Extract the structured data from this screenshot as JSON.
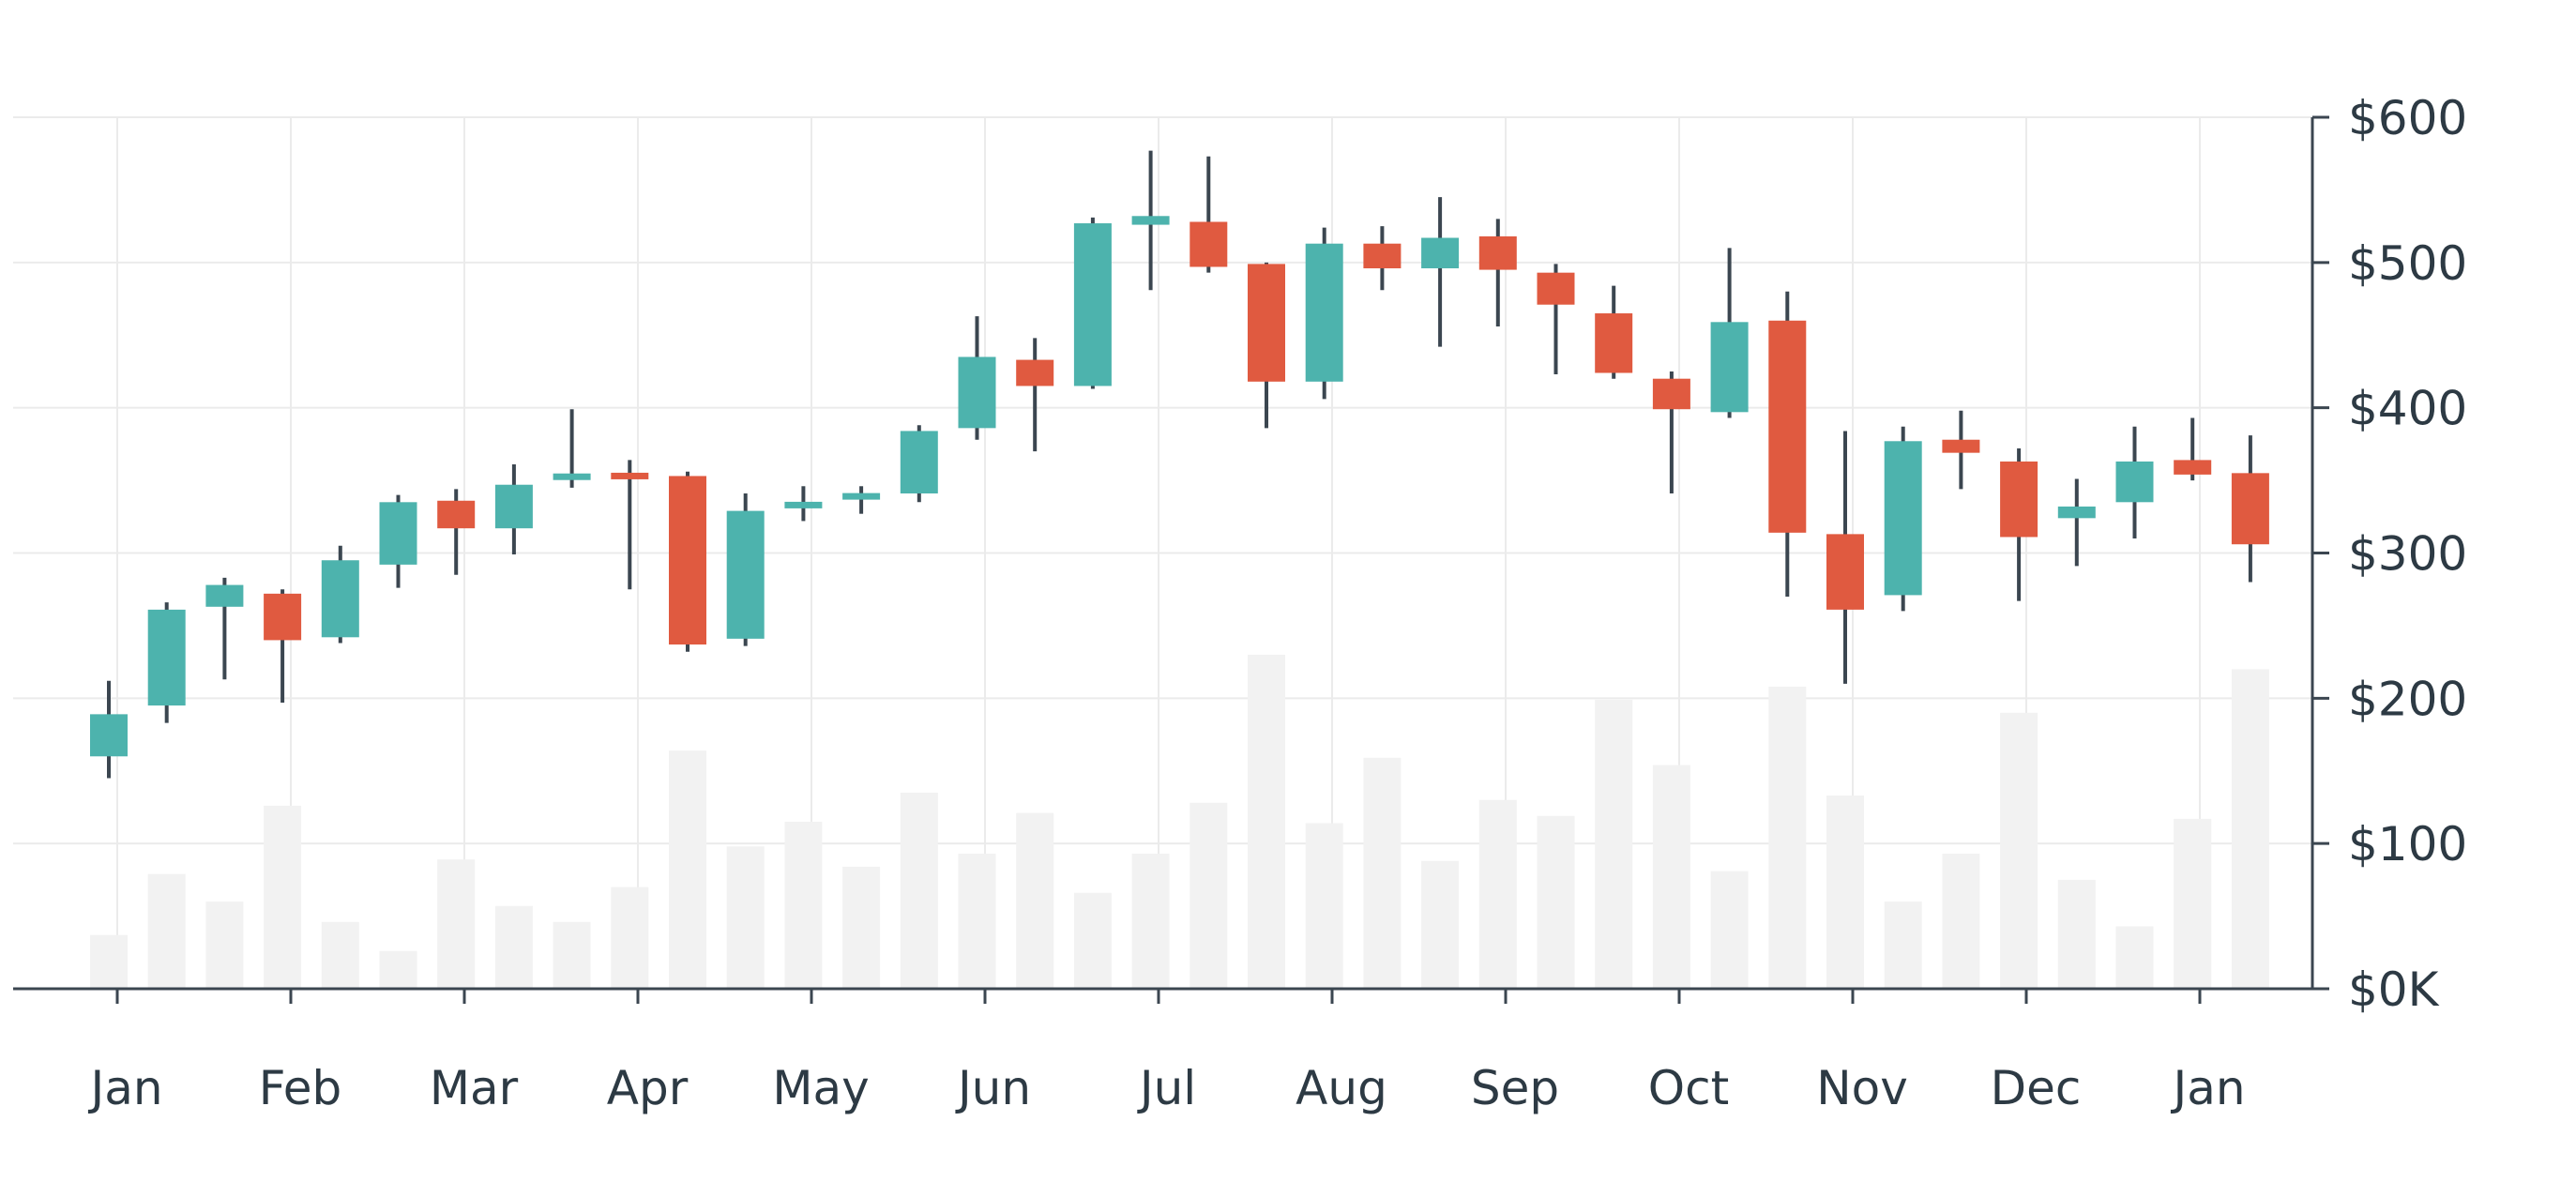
{
  "chart_data": {
    "type": "candlestick",
    "title": "",
    "xlabel": "",
    "ylabel": "",
    "ylim": [
      0,
      600
    ],
    "y_ticks": [
      0,
      100,
      200,
      300,
      400,
      500,
      600
    ],
    "y_tick_labels": [
      "$0K",
      "$100",
      "$200",
      "$300",
      "$400",
      "$500",
      "$600"
    ],
    "y_axis_position": "right",
    "x_tick_labels": [
      "Jan",
      "Feb",
      "Mar",
      "Apr",
      "May",
      "Jun",
      "Jul",
      "Aug",
      "Sep",
      "Oct",
      "Nov",
      "Dec",
      "Jan"
    ],
    "grid": true,
    "colors": {
      "up": "#4db3ad",
      "down": "#e05a40",
      "volume": "#f2f2f2",
      "grid": "#ebebeb",
      "axis": "#3b4650",
      "wick": "#3b4650",
      "text": "#2d3a44"
    },
    "candles": [
      {
        "open": 160,
        "close": 189,
        "high": 212,
        "low": 145,
        "volume": 37
      },
      {
        "open": 195,
        "close": 261,
        "high": 266,
        "low": 183,
        "volume": 79
      },
      {
        "open": 263,
        "close": 278,
        "high": 283,
        "low": 213,
        "volume": 60
      },
      {
        "open": 272,
        "close": 240,
        "high": 275,
        "low": 197,
        "volume": 126
      },
      {
        "open": 242,
        "close": 295,
        "high": 305,
        "low": 238,
        "volume": 46
      },
      {
        "open": 292,
        "close": 335,
        "high": 340,
        "low": 276,
        "volume": 26
      },
      {
        "open": 336,
        "close": 317,
        "high": 344,
        "low": 285,
        "volume": 89
      },
      {
        "open": 317,
        "close": 347,
        "high": 361,
        "low": 299,
        "volume": 57
      },
      {
        "open": 351,
        "close": 354,
        "high": 399,
        "low": 345,
        "volume": 46
      },
      {
        "open": 355,
        "close": 351,
        "high": 364,
        "low": 275,
        "volume": 70
      },
      {
        "open": 353,
        "close": 237,
        "high": 356,
        "low": 232,
        "volume": 164
      },
      {
        "open": 241,
        "close": 329,
        "high": 341,
        "low": 236,
        "volume": 98
      },
      {
        "open": 331,
        "close": 335,
        "high": 346,
        "low": 322,
        "volume": 115
      },
      {
        "open": 337,
        "close": 341,
        "high": 346,
        "low": 327,
        "volume": 84
      },
      {
        "open": 341,
        "close": 384,
        "high": 388,
        "low": 335,
        "volume": 135
      },
      {
        "open": 386,
        "close": 435,
        "high": 463,
        "low": 378,
        "volume": 93
      },
      {
        "open": 433,
        "close": 415,
        "high": 448,
        "low": 370,
        "volume": 121
      },
      {
        "open": 415,
        "close": 527,
        "high": 531,
        "low": 413,
        "volume": 66
      },
      {
        "open": 526,
        "close": 532,
        "high": 577,
        "low": 481,
        "volume": 93
      },
      {
        "open": 528,
        "close": 497,
        "high": 573,
        "low": 493,
        "volume": 128
      },
      {
        "open": 499,
        "close": 418,
        "high": 500,
        "low": 386,
        "volume": 230
      },
      {
        "open": 418,
        "close": 513,
        "high": 524,
        "low": 406,
        "volume": 114
      },
      {
        "open": 513,
        "close": 496,
        "high": 525,
        "low": 481,
        "volume": 159
      },
      {
        "open": 496,
        "close": 517,
        "high": 545,
        "low": 442,
        "volume": 88
      },
      {
        "open": 518,
        "close": 495,
        "high": 530,
        "low": 456,
        "volume": 130
      },
      {
        "open": 493,
        "close": 471,
        "high": 499,
        "low": 423,
        "volume": 119
      },
      {
        "open": 465,
        "close": 424,
        "high": 484,
        "low": 420,
        "volume": 199
      },
      {
        "open": 420,
        "close": 399,
        "high": 425,
        "low": 341,
        "volume": 154
      },
      {
        "open": 397,
        "close": 459,
        "high": 510,
        "low": 393,
        "volume": 81
      },
      {
        "open": 460,
        "close": 314,
        "high": 480,
        "low": 270,
        "volume": 208
      },
      {
        "open": 313,
        "close": 261,
        "high": 384,
        "low": 210,
        "volume": 133
      },
      {
        "open": 271,
        "close": 377,
        "high": 387,
        "low": 260,
        "volume": 60
      },
      {
        "open": 378,
        "close": 369,
        "high": 398,
        "low": 344,
        "volume": 93
      },
      {
        "open": 363,
        "close": 311,
        "high": 372,
        "low": 267,
        "volume": 190
      },
      {
        "open": 324,
        "close": 332,
        "high": 351,
        "low": 291,
        "volume": 75
      },
      {
        "open": 335,
        "close": 363,
        "high": 387,
        "low": 310,
        "volume": 43
      },
      {
        "open": 364,
        "close": 354,
        "high": 393,
        "low": 350,
        "volume": 117
      },
      {
        "open": 355,
        "close": 306,
        "high": 381,
        "low": 280,
        "volume": 220
      }
    ]
  }
}
